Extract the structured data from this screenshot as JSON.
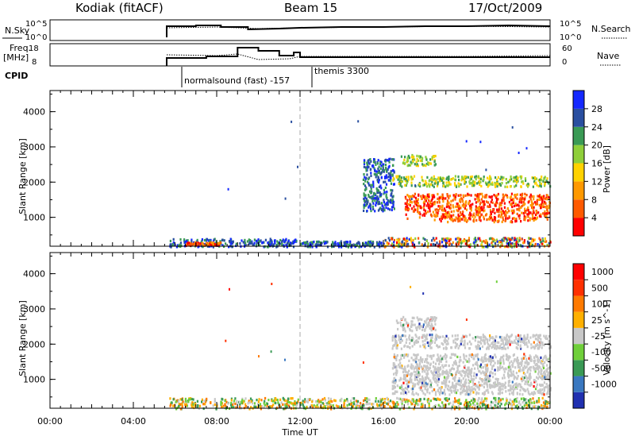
{
  "header": {
    "radar": "Kodiak (fitACF)",
    "beam": "Beam 15",
    "date": "17/Oct/2009"
  },
  "status_panels": {
    "nsky": {
      "label": "N.Sky",
      "ticks": [
        "10^5",
        "10^0"
      ]
    },
    "nsearch": {
      "label": "N.Search",
      "ticks": [
        "10^5",
        "10^0"
      ]
    },
    "freq": {
      "label_line1": "Freq.",
      "label_line2": "[MHz]",
      "ticks": [
        "18",
        "8"
      ]
    },
    "nave": {
      "label": "Nave",
      "ticks": [
        "60",
        "0"
      ]
    },
    "cpid": {
      "label": "CPID",
      "programs": [
        "normalsound (fast) -157",
        "themis 3300"
      ]
    }
  },
  "chart_data": [
    {
      "type": "heatmap",
      "name": "power",
      "ylabel": "Slant Range [km]",
      "yticks": [
        "4000",
        "3000",
        "2000",
        "1000"
      ],
      "ylim": [
        180,
        4600
      ],
      "colorbar": {
        "label": "Power [dB]",
        "ticks": [
          "28",
          "24",
          "20",
          "16",
          "12",
          "8",
          "4"
        ],
        "colors": [
          "#ff0000",
          "#ff5a00",
          "#ff9900",
          "#ffd200",
          "#8fcf3a",
          "#3a9a55",
          "#2a4fa0",
          "#1428ff"
        ]
      },
      "regions": [
        {
          "x0": 5.7,
          "x1": 11.8,
          "r0": 190,
          "r1": 420,
          "level": "low"
        },
        {
          "x0": 6.5,
          "x1": 8.2,
          "r0": 230,
          "r1": 320,
          "level": "high"
        },
        {
          "x0": 12.0,
          "x1": 16.0,
          "r0": 190,
          "r1": 350,
          "level": "low"
        },
        {
          "x0": 16.0,
          "x1": 24.0,
          "r0": 190,
          "r1": 450,
          "level": "mixed"
        },
        {
          "x0": 17.0,
          "x1": 24.0,
          "r0": 900,
          "r1": 1700,
          "level": "high"
        },
        {
          "x0": 16.4,
          "x1": 24.0,
          "r0": 1900,
          "r1": 2200,
          "level": "mid"
        },
        {
          "x0": 16.8,
          "x1": 18.5,
          "r0": 2500,
          "r1": 2800,
          "level": "mid"
        },
        {
          "x0": 15.0,
          "x1": 16.5,
          "r0": 1200,
          "r1": 2700,
          "level": "low"
        }
      ]
    },
    {
      "type": "heatmap",
      "name": "velocity",
      "ylabel": "Slant Range [km]",
      "yticks": [
        "4000",
        "3000",
        "2000",
        "1000"
      ],
      "ylim": [
        180,
        4600
      ],
      "colorbar": {
        "label": "Velocity [m s^-1]",
        "ticks": [
          "1000",
          "500",
          "100",
          "25",
          "-25",
          "-100",
          "-500",
          "-1000"
        ],
        "colors": [
          "#2030b0",
          "#3a78c0",
          "#3a9a55",
          "#6fcf3a",
          "#c8c8c8",
          "#ffb000",
          "#ff7a00",
          "#ff3000",
          "#ff0000"
        ]
      },
      "regions": [
        {
          "x0": 5.7,
          "x1": 24.0,
          "r0": 190,
          "r1": 500,
          "level": "mixed"
        },
        {
          "x0": 16.4,
          "x1": 24.0,
          "r0": 600,
          "r1": 1750,
          "level": "grey"
        },
        {
          "x0": 16.4,
          "x1": 24.0,
          "r0": 1900,
          "r1": 2300,
          "level": "grey"
        },
        {
          "x0": 16.6,
          "x1": 18.5,
          "r0": 2400,
          "r1": 2800,
          "level": "grey"
        }
      ]
    }
  ],
  "x_axis": {
    "label": "Time UT",
    "ticks": [
      "00:00",
      "04:00",
      "08:00",
      "12:00",
      "16:00",
      "20:00",
      "00:00"
    ],
    "marker_time": "12:00"
  }
}
